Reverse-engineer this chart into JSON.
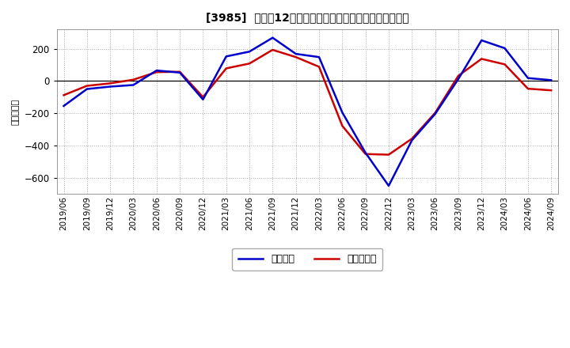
{
  "title": "[3985]  利益だ12か月移動合計の対前年同期増減額の推移",
  "ylabel": "（百万円）",
  "background_color": "#ffffff",
  "plot_bg_color": "#ffffff",
  "line_color_blue": "#0000cc",
  "line_color_red": "#cc0000",
  "legend_blue": "経常利益",
  "legend_red": "当期純利益",
  "ylim": [
    -700,
    320
  ],
  "yticks": [
    -600,
    -400,
    -200,
    0,
    200
  ],
  "dates": [
    "2019/06",
    "2019/09",
    "2019/12",
    "2020/03",
    "2020/06",
    "2020/09",
    "2020/12",
    "2021/03",
    "2021/06",
    "2021/09",
    "2021/12",
    "2022/03",
    "2022/06",
    "2022/09",
    "2022/12",
    "2023/03",
    "2023/06",
    "2023/09",
    "2023/12",
    "2024/03",
    "2024/06",
    "2024/09"
  ],
  "keijo_rieki": [
    -155,
    -50,
    -35,
    -25,
    65,
    52,
    -115,
    152,
    182,
    268,
    168,
    148,
    -195,
    -445,
    -650,
    -368,
    -205,
    12,
    252,
    203,
    18,
    5
  ],
  "touki_junrieki": [
    -88,
    -30,
    -15,
    8,
    55,
    57,
    -100,
    78,
    108,
    193,
    148,
    88,
    -278,
    -453,
    -457,
    -358,
    -198,
    32,
    137,
    103,
    -48,
    -58
  ]
}
